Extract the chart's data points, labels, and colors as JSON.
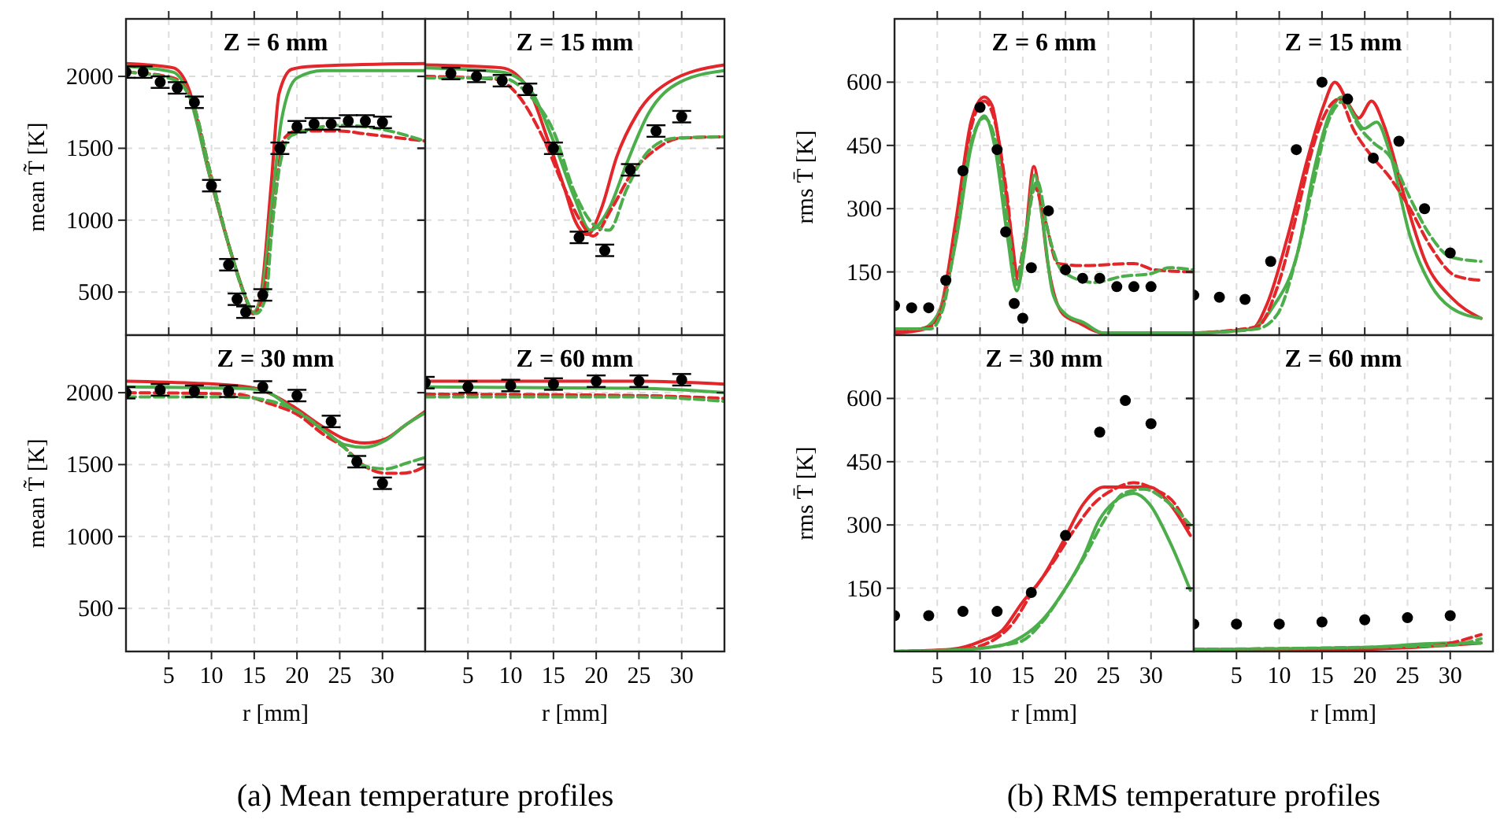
{
  "chart_data": [
    {
      "type": "line",
      "title": "Z = 6 mm",
      "ylabel": "mean T̃ [K]",
      "xlim": [
        0,
        35
      ],
      "ylim": [
        200,
        2400
      ],
      "xticks": [
        5,
        10,
        15,
        20,
        25,
        30
      ],
      "yticks": [
        500,
        1000,
        1500,
        2000
      ],
      "grid": true,
      "tick_labels": "y",
      "series": [
        {
          "color": "#e3262a",
          "line_style": "solid",
          "x": [
            0,
            5.5,
            7.3,
            9.7,
            12.2,
            14,
            14.9,
            15.8,
            17,
            17.9,
            19.4,
            21.9,
            35
          ],
          "values": [
            2090,
            2060,
            1920,
            1330,
            790,
            460,
            350,
            490,
            1260,
            1880,
            2050,
            2070,
            2090
          ]
        },
        {
          "color": "#4cae4a",
          "line_style": "solid",
          "x": [
            0,
            5.5,
            7.3,
            9.7,
            12.2,
            14,
            14.7,
            15.8,
            17,
            18.2,
            20,
            23.1,
            35
          ],
          "values": [
            2070,
            2030,
            1880,
            1330,
            790,
            460,
            350,
            460,
            1080,
            1700,
            1990,
            2040,
            2040
          ]
        },
        {
          "color": "#e3262a",
          "line_style": "dashed",
          "x": [
            0,
            5.5,
            7.9,
            9.7,
            12.2,
            14,
            14.9,
            16.1,
            17.3,
            18.5,
            20,
            25,
            28,
            35
          ],
          "values": [
            2030,
            1990,
            1800,
            1370,
            790,
            460,
            350,
            490,
            1080,
            1570,
            1620,
            1620,
            1600,
            1550
          ]
        },
        {
          "color": "#4cae4a",
          "line_style": "dashed",
          "x": [
            0,
            5.5,
            7.9,
            9.7,
            12.2,
            14,
            15.2,
            16.4,
            17,
            18.2,
            19.4,
            25,
            29.2,
            35
          ],
          "values": [
            2030,
            1980,
            1800,
            1370,
            790,
            460,
            350,
            470,
            890,
            1440,
            1590,
            1660,
            1640,
            1550
          ]
        },
        {
          "type": "scatter",
          "color": "#000000",
          "marker": "circle",
          "x": [
            0,
            2,
            4,
            6,
            8,
            10,
            12,
            13,
            14,
            16,
            18,
            20,
            22,
            24,
            26,
            28,
            30
          ],
          "values": [
            2030,
            2030,
            1960,
            1920,
            1820,
            1240,
            690,
            450,
            360,
            480,
            1500,
            1650,
            1670,
            1670,
            1690,
            1690,
            1680
          ],
          "errors": [
            40,
            40,
            40,
            40,
            40,
            40,
            40,
            40,
            40,
            40,
            40,
            40,
            40,
            40,
            40,
            40,
            40
          ]
        }
      ]
    },
    {
      "type": "line",
      "title": "Z = 15 mm",
      "xlim": [
        0,
        35
      ],
      "ylim": [
        200,
        2400
      ],
      "xticks": [
        5,
        10,
        15,
        20,
        25,
        30
      ],
      "yticks": [
        500,
        1000,
        1500,
        2000
      ],
      "grid": true,
      "tick_labels": false,
      "series": [
        {
          "color": "#e3262a",
          "line_style": "solid",
          "x": [
            0,
            8.9,
            12,
            14.4,
            16.3,
            17.5,
            19,
            20.6,
            22.4,
            24.8,
            28.5,
            35
          ],
          "values": [
            2080,
            2060,
            1920,
            1550,
            1220,
            1000,
            900,
            1080,
            1440,
            1740,
            1960,
            2080
          ]
        },
        {
          "color": "#4cae4a",
          "line_style": "solid",
          "x": [
            0,
            8.9,
            12,
            15,
            17.5,
            19.3,
            21.5,
            23.6,
            26.1,
            29.8,
            35
          ],
          "values": [
            2060,
            2030,
            1930,
            1550,
            1150,
            930,
            1080,
            1400,
            1740,
            1960,
            2040
          ]
        },
        {
          "color": "#e3262a",
          "line_style": "dashed",
          "x": [
            0,
            8.3,
            10.7,
            13.8,
            16.3,
            18.1,
            19.6,
            21.8,
            24.2,
            26.7,
            29.8,
            35
          ],
          "values": [
            2000,
            1980,
            1880,
            1570,
            1220,
            1000,
            890,
            1080,
            1330,
            1480,
            1570,
            1580
          ]
        },
        {
          "color": "#4cae4a",
          "line_style": "dashed",
          "x": [
            0,
            8.9,
            12,
            15,
            17.5,
            19.9,
            21.5,
            23.6,
            26.1,
            29.1,
            35
          ],
          "values": [
            1990,
            1990,
            1880,
            1620,
            1190,
            960,
            930,
            1220,
            1480,
            1570,
            1580
          ]
        },
        {
          "type": "scatter",
          "color": "#000000",
          "marker": "circle",
          "x": [
            3,
            6,
            9,
            12,
            15,
            18,
            21,
            24,
            27,
            30
          ],
          "values": [
            2020,
            2000,
            1970,
            1910,
            1500,
            880,
            790,
            1350,
            1620,
            1720
          ],
          "errors": [
            40,
            40,
            40,
            40,
            40,
            40,
            40,
            40,
            40,
            40
          ]
        }
      ]
    },
    {
      "type": "line",
      "title": "Z = 30 mm",
      "xlabel": "r [mm]",
      "ylabel": "mean T̃ [K]",
      "xlim": [
        0,
        35
      ],
      "ylim": [
        200,
        2400
      ],
      "xticks": [
        5,
        10,
        15,
        20,
        25,
        30
      ],
      "yticks": [
        500,
        1000,
        1500,
        2000
      ],
      "grid": true,
      "annotations": [
        "(a) Mean temperature profiles"
      ],
      "series": [
        {
          "color": "#e3262a",
          "line_style": "solid",
          "x": [
            0,
            12.8,
            15.8,
            19.4,
            23.1,
            25.5,
            27.9,
            30.4,
            32.8,
            35
          ],
          "values": [
            2080,
            2050,
            2020,
            1910,
            1760,
            1680,
            1650,
            1680,
            1780,
            1870
          ]
        },
        {
          "color": "#4cae4a",
          "line_style": "solid",
          "x": [
            0,
            12.8,
            15.8,
            19.4,
            23.1,
            25.5,
            27.9,
            30.4,
            32.8,
            35
          ],
          "values": [
            2040,
            2030,
            2020,
            1890,
            1740,
            1640,
            1620,
            1670,
            1780,
            1860
          ]
        },
        {
          "color": "#e3262a",
          "line_style": "dashed",
          "x": [
            0,
            12.8,
            17,
            20,
            23.1,
            25.5,
            27.9,
            30.4,
            32.2,
            34,
            35
          ],
          "values": [
            2000,
            1990,
            1920,
            1850,
            1710,
            1620,
            1490,
            1440,
            1440,
            1460,
            1490
          ]
        },
        {
          "color": "#4cae4a",
          "line_style": "dashed",
          "x": [
            0,
            12.8,
            17,
            20,
            23.1,
            25.5,
            27.9,
            30.4,
            32.8,
            35
          ],
          "values": [
            1970,
            1970,
            1940,
            1870,
            1740,
            1620,
            1490,
            1470,
            1510,
            1550
          ]
        },
        {
          "type": "scatter",
          "color": "#000000",
          "marker": "circle",
          "x": [
            0,
            4,
            8,
            12,
            16,
            20,
            24,
            27,
            30
          ],
          "values": [
            2000,
            2020,
            2010,
            2010,
            2040,
            1980,
            1800,
            1520,
            1370
          ],
          "errors": [
            40,
            40,
            40,
            40,
            40,
            40,
            40,
            40,
            40
          ]
        }
      ]
    },
    {
      "type": "line",
      "title": "Z = 60 mm",
      "xlabel": "r [mm]",
      "xlim": [
        0,
        35
      ],
      "ylim": [
        200,
        2400
      ],
      "xticks": [
        5,
        10,
        15,
        20,
        25,
        30
      ],
      "yticks": [
        500,
        1000,
        1500,
        2000
      ],
      "grid": true,
      "tick_labels": "x",
      "series": [
        {
          "color": "#e3262a",
          "line_style": "solid",
          "x": [
            0,
            25,
            35
          ],
          "values": [
            2080,
            2080,
            2060
          ]
        },
        {
          "color": "#4cae4a",
          "line_style": "solid",
          "x": [
            0,
            25,
            35
          ],
          "values": [
            2040,
            2030,
            2000
          ]
        },
        {
          "color": "#e3262a",
          "line_style": "dashed",
          "x": [
            0,
            25,
            35
          ],
          "values": [
            1990,
            1980,
            1960
          ]
        },
        {
          "color": "#4cae4a",
          "line_style": "dashed",
          "x": [
            0,
            25,
            35
          ],
          "values": [
            1970,
            1970,
            1940
          ]
        },
        {
          "type": "scatter",
          "color": "#000000",
          "marker": "circle",
          "x": [
            0,
            5,
            10,
            15,
            20,
            25,
            30
          ],
          "values": [
            2070,
            2040,
            2050,
            2060,
            2080,
            2080,
            2090
          ],
          "errors": [
            40,
            40,
            40,
            40,
            40,
            40,
            40
          ]
        }
      ]
    },
    {
      "type": "line",
      "title": "Z = 6 mm",
      "ylabel": "rms T̄ [K]",
      "xlim": [
        0,
        35
      ],
      "ylim": [
        0,
        750
      ],
      "xticks": [
        5,
        10,
        15,
        20,
        25,
        30
      ],
      "yticks": [
        150,
        300,
        450,
        600
      ],
      "grid": true,
      "tick_labels": "y",
      "series": [
        {
          "color": "#e3262a",
          "line_style": "solid",
          "x": [
            0,
            3.6,
            5.4,
            7.2,
            9,
            10.5,
            11.4,
            12.6,
            13.75,
            14.5,
            15.2,
            16.3,
            17,
            17.9,
            19.7,
            21.5,
            24.5,
            35
          ],
          "values": [
            5,
            15,
            65,
            275,
            510,
            565,
            545,
            400,
            225,
            125,
            210,
            400,
            325,
            175,
            50,
            30,
            5,
            5
          ]
        },
        {
          "color": "#4cae4a",
          "line_style": "solid",
          "x": [
            0,
            3,
            5.1,
            7.2,
            9,
            10.5,
            11.7,
            13.2,
            14.3,
            15.2,
            16.4,
            17.3,
            18.5,
            20,
            22.1,
            24.5,
            35
          ],
          "values": [
            15,
            15,
            50,
            225,
            450,
            520,
            450,
            235,
            105,
            200,
            380,
            275,
            100,
            50,
            30,
            5,
            5
          ]
        },
        {
          "color": "#e3262a",
          "line_style": "dashed",
          "x": [
            0,
            4.2,
            5.7,
            7.2,
            9,
            10.5,
            11.7,
            13.2,
            14.3,
            15.2,
            16.4,
            17.6,
            19.1,
            22.1,
            28,
            30.4,
            35
          ],
          "values": [
            10,
            20,
            75,
            260,
            495,
            555,
            510,
            325,
            140,
            225,
            350,
            275,
            170,
            165,
            170,
            155,
            150
          ]
        },
        {
          "color": "#4cae4a",
          "line_style": "dashed",
          "x": [
            0,
            4.2,
            5.7,
            7.2,
            9,
            10.5,
            11.7,
            13.2,
            14.3,
            15.2,
            16.7,
            17.9,
            19.7,
            23.3,
            26.8,
            29.8,
            32.2,
            35
          ],
          "values": [
            15,
            15,
            65,
            235,
            460,
            515,
            470,
            275,
            120,
            225,
            365,
            250,
            150,
            125,
            140,
            145,
            160,
            155
          ]
        },
        {
          "type": "scatter",
          "color": "#000000",
          "marker": "circle",
          "x": [
            0,
            2,
            4,
            6,
            8,
            10,
            12,
            13,
            14,
            15,
            16,
            18,
            20,
            22,
            24,
            26,
            28,
            30
          ],
          "values": [
            70,
            65,
            65,
            130,
            390,
            540,
            440,
            245,
            75,
            40,
            160,
            295,
            155,
            135,
            135,
            115,
            115,
            115
          ]
        }
      ]
    },
    {
      "type": "line",
      "title": "Z = 15 mm",
      "xlim": [
        0,
        35
      ],
      "ylim": [
        0,
        750
      ],
      "xticks": [
        5,
        10,
        15,
        20,
        25,
        30
      ],
      "yticks": [
        150,
        300,
        450,
        600
      ],
      "grid": true,
      "tick_labels": false,
      "series": [
        {
          "color": "#e3262a",
          "line_style": "solid",
          "x": [
            0,
            6.8,
            8.6,
            11,
            13.4,
            15.2,
            16.5,
            18.2,
            19.3,
            20.8,
            22.3,
            24.7,
            27.1,
            30.1,
            33.6
          ],
          "values": [
            5,
            15,
            75,
            235,
            425,
            545,
            600,
            545,
            515,
            555,
            495,
            325,
            175,
            90,
            40
          ]
        },
        {
          "color": "#4cae4a",
          "line_style": "solid",
          "x": [
            0,
            6.8,
            9.2,
            12.2,
            14,
            15.8,
            17.3,
            18.75,
            19.9,
            21.4,
            22.9,
            25.3,
            27.7,
            30.1,
            33.6
          ],
          "values": [
            5,
            15,
            65,
            200,
            385,
            520,
            565,
            520,
            490,
            505,
            435,
            235,
            120,
            65,
            40
          ]
        },
        {
          "color": "#e3262a",
          "line_style": "dashed",
          "x": [
            0,
            7.4,
            9.8,
            12.2,
            14,
            15.5,
            17,
            18.75,
            20.8,
            22.9,
            25.3,
            27.7,
            30.7,
            33.6
          ],
          "values": [
            5,
            20,
            115,
            300,
            450,
            530,
            560,
            485,
            425,
            375,
            300,
            210,
            140,
            130
          ]
        },
        {
          "color": "#4cae4a",
          "line_style": "dashed",
          "x": [
            0,
            7.4,
            9.8,
            12.2,
            14,
            15.8,
            17.6,
            19.3,
            21.1,
            22.9,
            25.3,
            27.7,
            30.1,
            33.6
          ],
          "values": [
            5,
            15,
            50,
            200,
            360,
            510,
            555,
            495,
            455,
            425,
            325,
            235,
            185,
            175
          ]
        },
        {
          "type": "scatter",
          "color": "#000000",
          "marker": "circle",
          "x": [
            0,
            3,
            6,
            9,
            12,
            15,
            18,
            21,
            24,
            27,
            30
          ],
          "values": [
            95,
            90,
            85,
            175,
            440,
            600,
            560,
            420,
            460,
            300,
            195
          ]
        }
      ]
    },
    {
      "type": "line",
      "title": "Z = 30 mm",
      "xlabel": "r [mm]",
      "ylabel": "rms T̄ [K]",
      "xlim": [
        0,
        35
      ],
      "ylim": [
        0,
        750
      ],
      "xticks": [
        5,
        10,
        15,
        20,
        25,
        30
      ],
      "yticks": [
        150,
        300,
        450,
        600
      ],
      "grid": true,
      "annotations": [
        "(b) RMS temperature profiles"
      ],
      "series": [
        {
          "color": "#e3262a",
          "line_style": "solid",
          "x": [
            0,
            6.6,
            10.2,
            12.6,
            14.9,
            17.3,
            19.7,
            22.1,
            24.5,
            26.8,
            29.8,
            32.2,
            34.6
          ],
          "values": [
            0,
            5,
            25,
            50,
            115,
            175,
            260,
            350,
            390,
            390,
            390,
            350,
            275
          ]
        },
        {
          "color": "#4cae4a",
          "line_style": "solid",
          "x": [
            0,
            8.4,
            12.6,
            14.9,
            17.3,
            19.7,
            22.1,
            23.9,
            25.7,
            28,
            29.8,
            32.2,
            34.6
          ],
          "values": [
            0,
            5,
            15,
            35,
            75,
            140,
            225,
            310,
            355,
            375,
            350,
            260,
            145
          ]
        },
        {
          "color": "#e3262a",
          "line_style": "dashed",
          "x": [
            0,
            7.8,
            11.4,
            13.75,
            16.1,
            18.5,
            20.9,
            23.3,
            25.7,
            28,
            30.4,
            32.8,
            34.6
          ],
          "values": [
            0,
            5,
            25,
            65,
            140,
            210,
            285,
            350,
            385,
            400,
            385,
            350,
            285
          ]
        },
        {
          "color": "#4cae4a",
          "line_style": "dashed",
          "x": [
            0,
            8.4,
            12.6,
            14.9,
            17.3,
            19.7,
            22.1,
            24.5,
            26.8,
            29.2,
            31.6,
            34.6
          ],
          "values": [
            0,
            5,
            15,
            25,
            70,
            140,
            220,
            310,
            375,
            385,
            360,
            300
          ]
        },
        {
          "type": "scatter",
          "color": "#000000",
          "marker": "circle",
          "x": [
            0,
            4,
            8,
            12,
            16,
            20,
            24,
            27,
            30
          ],
          "values": [
            85,
            85,
            95,
            95,
            140,
            275,
            520,
            595,
            540
          ]
        }
      ]
    },
    {
      "type": "line",
      "title": "Z = 60 mm",
      "xlabel": "r [mm]",
      "xlim": [
        0,
        35
      ],
      "ylim": [
        0,
        750
      ],
      "xticks": [
        5,
        10,
        15,
        20,
        25,
        30
      ],
      "yticks": [
        150,
        300,
        450,
        600
      ],
      "grid": true,
      "tick_labels": "x",
      "series": [
        {
          "color": "#e3262a",
          "line_style": "solid",
          "x": [
            0,
            20,
            30,
            33.6
          ],
          "values": [
            0,
            5,
            15,
            20
          ]
        },
        {
          "color": "#4cae4a",
          "line_style": "solid",
          "x": [
            0,
            20,
            30,
            33.6
          ],
          "values": [
            5,
            10,
            20,
            20
          ]
        },
        {
          "color": "#e3262a",
          "line_style": "dashed",
          "x": [
            0,
            25,
            30,
            33.6
          ],
          "values": [
            5,
            10,
            20,
            40
          ]
        },
        {
          "color": "#4cae4a",
          "line_style": "dashed",
          "x": [
            0,
            20,
            30,
            33.6
          ],
          "values": [
            5,
            10,
            15,
            30
          ]
        },
        {
          "type": "scatter",
          "color": "#000000",
          "marker": "circle",
          "x": [
            0,
            5,
            10,
            15,
            20,
            25,
            30
          ],
          "values": [
            65,
            65,
            65,
            70,
            75,
            80,
            85
          ]
        }
      ]
    }
  ]
}
